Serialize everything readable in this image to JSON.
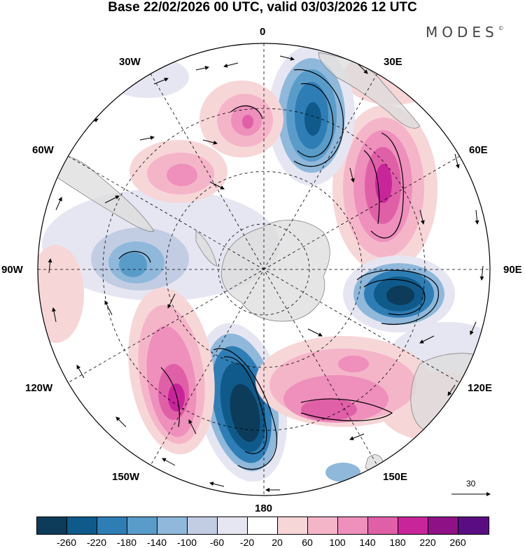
{
  "header": {
    "title": "Base 22/02/2026 00 UTC, valid 03/03/2026 12 UTC",
    "brand": "MODES",
    "brand_mark": "©"
  },
  "map": {
    "projection": "south-polar-stereographic",
    "longitude_labels": [
      "0",
      "30E",
      "60E",
      "90E",
      "120E",
      "150E",
      "180",
      "150W",
      "120W",
      "90W",
      "60W",
      "30W"
    ],
    "reference_vector": {
      "value": "30"
    }
  },
  "colorbar": {
    "ticks": [
      "-260",
      "-220",
      "-180",
      "-140",
      "-100",
      "-60",
      "-20",
      "20",
      "60",
      "100",
      "140",
      "180",
      "220",
      "260"
    ],
    "colors": [
      "#0d3b5a",
      "#0f5a8a",
      "#2e7db5",
      "#5a9cc9",
      "#8fb8db",
      "#c2cde4",
      "#e6e6f2",
      "#ffffff",
      "#f7d6d8",
      "#f5b5c9",
      "#ee8fbc",
      "#e060a8",
      "#c9259b",
      "#8e1286",
      "#5a0d82"
    ]
  }
}
